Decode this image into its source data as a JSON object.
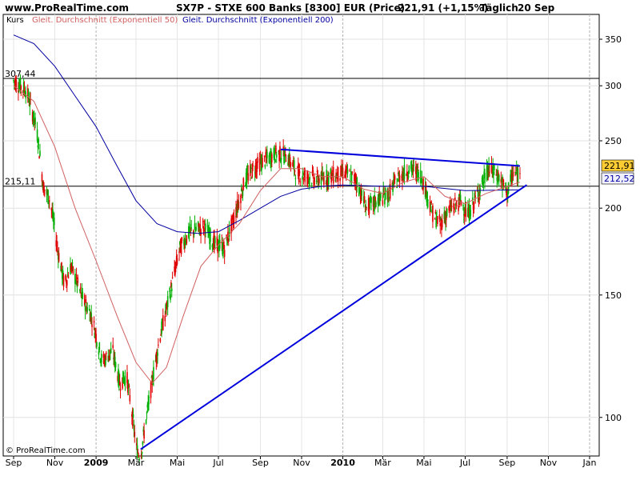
{
  "header": {
    "site": "www.ProRealTime.com",
    "title": "SX7P - STXE 600 Banks [8300] EUR (Price)",
    "price_change": "221,91 (+1,15%)",
    "period": "Täglich",
    "date": "20 Sep"
  },
  "legend": {
    "kurs": "Kurs",
    "ema50": "Gleit. Durchschnitt (Exponentiell 50)",
    "ema200": "Gleit. Durchschnitt (Exponentiell 200)"
  },
  "copyright": "© ProRealTime.com",
  "colors": {
    "up": "#00b000",
    "down": "#e00000",
    "ema50": "#d06060",
    "ema200": "#0000a0",
    "trend": "#0000dd",
    "price_box": "#ffcc33",
    "ema_box": "#f0f0ff"
  },
  "chart_data": {
    "type": "candlestick",
    "y_scale": "log",
    "ylim": [
      88,
      380
    ],
    "y_ticks": [
      100,
      150,
      200,
      250,
      300,
      350
    ],
    "x_labels": [
      "Sep",
      "Nov",
      "2009",
      "Mär",
      "Mai",
      "Jul",
      "Sep",
      "Nov",
      "2010",
      "Mär",
      "Mai",
      "Jul",
      "Sep",
      "Nov",
      "Jan"
    ],
    "reference_lines": [
      {
        "label": "307,44",
        "value": 307.44
      },
      {
        "label": "215,11",
        "value": 215.11
      }
    ],
    "price_labels": {
      "last": "221,91",
      "ema200": "212,52"
    },
    "price_path": [
      [
        "2008-09-01",
        305
      ],
      [
        "2008-09-20",
        295
      ],
      [
        "2008-10-05",
        260
      ],
      [
        "2008-10-15",
        215
      ],
      [
        "2008-10-25",
        205
      ],
      [
        "2008-11-05",
        175
      ],
      [
        "2008-11-15",
        155
      ],
      [
        "2008-11-25",
        165
      ],
      [
        "2008-12-10",
        150
      ],
      [
        "2008-12-25",
        140
      ],
      [
        "2009-01-10",
        120
      ],
      [
        "2009-01-25",
        125
      ],
      [
        "2009-02-05",
        112
      ],
      [
        "2009-02-15",
        115
      ],
      [
        "2009-03-02",
        90
      ],
      [
        "2009-03-08",
        88
      ],
      [
        "2009-03-20",
        105
      ],
      [
        "2009-04-05",
        130
      ],
      [
        "2009-04-20",
        150
      ],
      [
        "2009-05-05",
        175
      ],
      [
        "2009-05-20",
        185
      ],
      [
        "2009-06-10",
        188
      ],
      [
        "2009-06-25",
        178
      ],
      [
        "2009-07-10",
        175
      ],
      [
        "2009-07-25",
        195
      ],
      [
        "2009-08-10",
        220
      ],
      [
        "2009-08-25",
        230
      ],
      [
        "2009-09-10",
        235
      ],
      [
        "2009-09-25",
        240
      ],
      [
        "2009-10-10",
        238
      ],
      [
        "2009-10-25",
        225
      ],
      [
        "2009-11-10",
        222
      ],
      [
        "2009-11-25",
        220
      ],
      [
        "2009-12-10",
        222
      ],
      [
        "2010-01-05",
        225
      ],
      [
        "2010-01-20",
        220
      ],
      [
        "2010-02-05",
        200
      ],
      [
        "2010-02-20",
        205
      ],
      [
        "2010-03-10",
        210
      ],
      [
        "2010-03-25",
        222
      ],
      [
        "2010-04-10",
        228
      ],
      [
        "2010-04-25",
        225
      ],
      [
        "2010-05-05",
        210
      ],
      [
        "2010-05-15",
        195
      ],
      [
        "2010-05-25",
        190
      ],
      [
        "2010-06-10",
        200
      ],
      [
        "2010-06-25",
        205
      ],
      [
        "2010-07-05",
        195
      ],
      [
        "2010-07-20",
        210
      ],
      [
        "2010-08-05",
        228
      ],
      [
        "2010-08-20",
        222
      ],
      [
        "2010-09-01",
        210
      ],
      [
        "2010-09-10",
        225
      ],
      [
        "2010-09-20",
        221.91
      ]
    ],
    "ema50": [
      [
        "2008-09-01",
        300
      ],
      [
        "2008-10-01",
        285
      ],
      [
        "2008-11-01",
        245
      ],
      [
        "2008-12-01",
        200
      ],
      [
        "2009-01-01",
        168
      ],
      [
        "2009-02-01",
        140
      ],
      [
        "2009-03-01",
        120
      ],
      [
        "2009-03-25",
        112
      ],
      [
        "2009-04-15",
        118
      ],
      [
        "2009-05-10",
        140
      ],
      [
        "2009-06-05",
        165
      ],
      [
        "2009-07-01",
        177
      ],
      [
        "2009-08-01",
        190
      ],
      [
        "2009-09-01",
        212
      ],
      [
        "2009-10-01",
        228
      ],
      [
        "2009-11-01",
        228
      ],
      [
        "2009-12-01",
        222
      ],
      [
        "2010-01-01",
        222
      ],
      [
        "2010-02-01",
        213
      ],
      [
        "2010-03-01",
        210
      ],
      [
        "2010-04-01",
        218
      ],
      [
        "2010-05-01",
        222
      ],
      [
        "2010-06-01",
        208
      ],
      [
        "2010-07-01",
        203
      ],
      [
        "2010-08-01",
        210
      ],
      [
        "2010-09-20",
        218
      ]
    ],
    "ema200": [
      [
        "2008-09-01",
        355
      ],
      [
        "2008-10-01",
        345
      ],
      [
        "2008-11-01",
        320
      ],
      [
        "2008-12-01",
        290
      ],
      [
        "2009-01-01",
        262
      ],
      [
        "2009-02-01",
        230
      ],
      [
        "2009-03-01",
        205
      ],
      [
        "2009-04-01",
        190
      ],
      [
        "2009-05-01",
        185
      ],
      [
        "2009-06-01",
        184
      ],
      [
        "2009-07-01",
        185
      ],
      [
        "2009-08-01",
        192
      ],
      [
        "2009-09-01",
        200
      ],
      [
        "2009-10-01",
        208
      ],
      [
        "2009-11-01",
        213
      ],
      [
        "2009-12-01",
        215
      ],
      [
        "2010-01-01",
        216
      ],
      [
        "2010-03-01",
        215
      ],
      [
        "2010-05-01",
        215
      ],
      [
        "2010-07-01",
        212
      ],
      [
        "2010-09-20",
        212.52
      ]
    ],
    "trendlines": [
      {
        "from": [
          "2009-03-08",
          90
        ],
        "to": [
          "2010-09-30",
          216
        ]
      },
      {
        "from": [
          "2009-10-01",
          243
        ],
        "to": [
          "2010-09-20",
          230
        ]
      }
    ]
  }
}
